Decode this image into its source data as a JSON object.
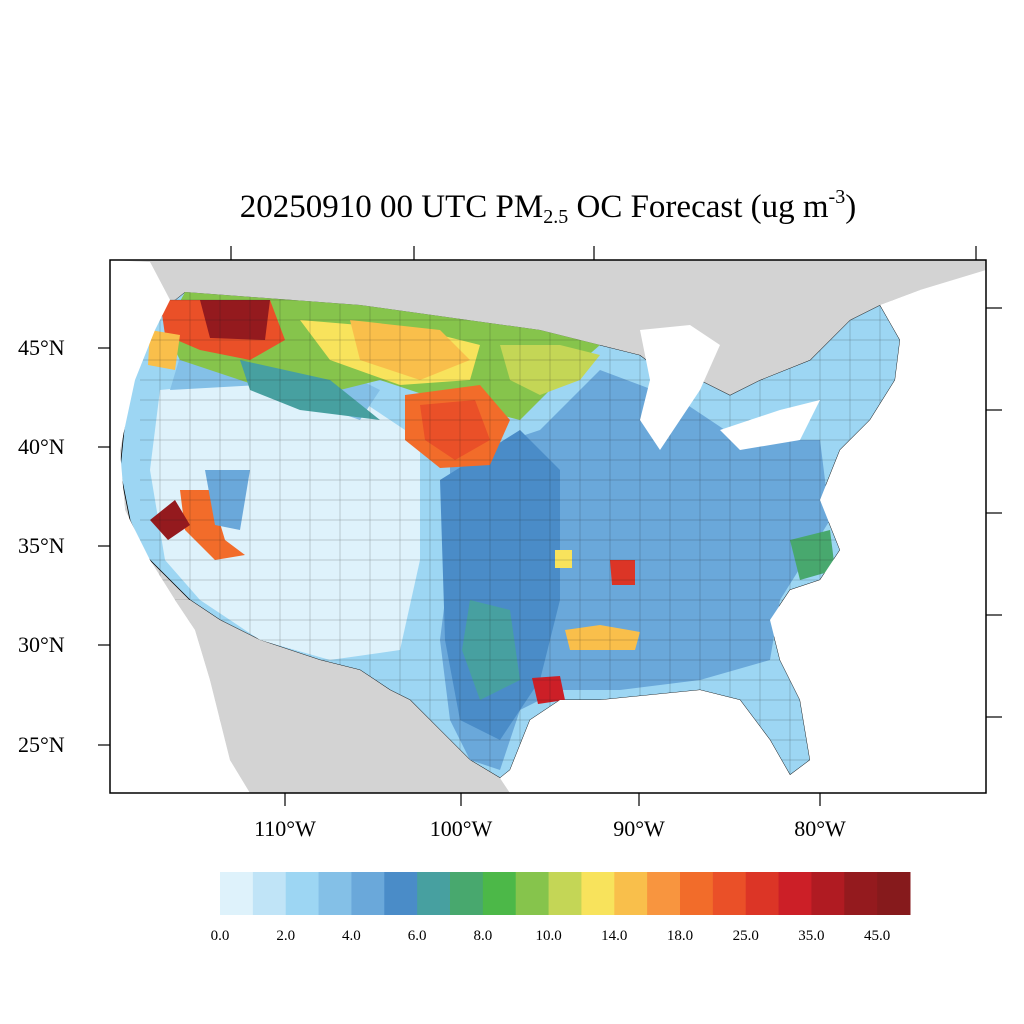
{
  "title": {
    "prefix": "20250910 00 UTC PM",
    "subscript": "2.5",
    "middle": " OC Forecast (ug m",
    "superscript": "-3",
    "suffix": ")"
  },
  "map": {
    "projection": "Lambert conformal (CONUS)",
    "lat_labels": [
      "45°N",
      "40°N",
      "35°N",
      "30°N",
      "25°N"
    ],
    "lon_labels": [
      "110°W",
      "100°W",
      "90°W",
      "80°W"
    ],
    "colors": {
      "background_land": "#d3d3d3",
      "water": "#ffffff",
      "frame": "#000000"
    }
  },
  "colorbar": {
    "colors": [
      "#def2fb",
      "#c0e4f7",
      "#9dd6f3",
      "#84c0e7",
      "#6aa8da",
      "#4a8cc8",
      "#47a0a0",
      "#48a86e",
      "#4cb848",
      "#86c44c",
      "#c4d656",
      "#f8e35c",
      "#f9bf4b",
      "#f8953f",
      "#f26c2a",
      "#ea5028",
      "#dc3526",
      "#cc1f27",
      "#b01b22",
      "#941a1e",
      "#861a1c"
    ],
    "labels": [
      "0.0",
      "2.0",
      "4.0",
      "6.0",
      "8.0",
      "10.0",
      "14.0",
      "18.0",
      "25.0",
      "35.0",
      "45.0"
    ]
  },
  "regions": [
    {
      "name": "pacific-northwest-smoke",
      "level": 19
    },
    {
      "name": "northern-plains-smoke",
      "level": 14
    },
    {
      "name": "southern-california-fire",
      "level": 20
    },
    {
      "name": "houston-hotspot",
      "level": 17
    },
    {
      "name": "eastern-us-background",
      "level": 4
    },
    {
      "name": "great-basin-clean",
      "level": 0
    }
  ]
}
